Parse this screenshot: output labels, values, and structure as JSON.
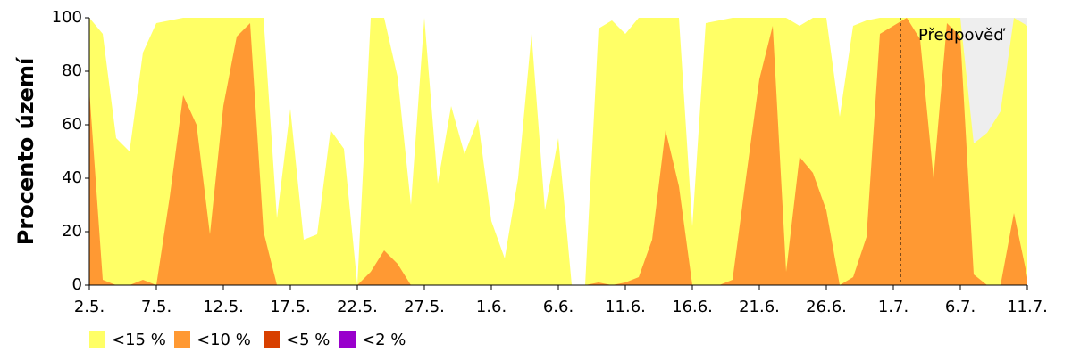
{
  "chart_data": {
    "type": "area",
    "y_label": "Procento území",
    "annotation": "Předpověď",
    "categories": [
      "2.5.",
      null,
      null,
      null,
      null,
      "7.5.",
      null,
      null,
      null,
      null,
      "12.5.",
      null,
      null,
      null,
      null,
      "17.5.",
      null,
      null,
      null,
      null,
      "22.5.",
      null,
      null,
      null,
      null,
      "27.5.",
      null,
      null,
      null,
      null,
      "1.6.",
      null,
      null,
      null,
      null,
      "6.6.",
      null,
      null,
      null,
      null,
      "11.6.",
      null,
      null,
      null,
      null,
      "16.6.",
      null,
      null,
      null,
      null,
      "21.6.",
      null,
      null,
      null,
      null,
      "26.6.",
      null,
      null,
      null,
      null,
      "1.7.",
      null,
      null,
      null,
      null,
      "6.7.",
      null,
      null,
      null,
      null,
      "11.7."
    ],
    "ylim": [
      0,
      100
    ],
    "yticks": [
      0,
      20,
      40,
      60,
      80,
      100
    ],
    "series": [
      {
        "name": "<15 %",
        "color": "#ffff66",
        "values": [
          100,
          94,
          55,
          50,
          87,
          98,
          99,
          100,
          100,
          100,
          100,
          100,
          100,
          100,
          25,
          66,
          17,
          19,
          58,
          51,
          0,
          100,
          100,
          78,
          30,
          100,
          38,
          67,
          49,
          62,
          24,
          10,
          40,
          94,
          28,
          55,
          0,
          0,
          96,
          99,
          94,
          100,
          100,
          100,
          100,
          22,
          98,
          99,
          100,
          100,
          100,
          100,
          100,
          97,
          100,
          100,
          63,
          97,
          99,
          100,
          100,
          100,
          100,
          100,
          100,
          100,
          53,
          57,
          65,
          100,
          97
        ]
      },
      {
        "name": "<10 %",
        "color": "#ff9933",
        "values": [
          73,
          2,
          0,
          0,
          2,
          0,
          33,
          71,
          60,
          19,
          67,
          93,
          98,
          20,
          0,
          0,
          0,
          0,
          0,
          0,
          0,
          5,
          13,
          8,
          0,
          0,
          0,
          0,
          0,
          0,
          0,
          0,
          0,
          0,
          0,
          0,
          0,
          0,
          1,
          0,
          1,
          3,
          17,
          58,
          37,
          0,
          0,
          0,
          2,
          40,
          77,
          97,
          5,
          48,
          42,
          28,
          0,
          3,
          18,
          94,
          97,
          100,
          92,
          40,
          98,
          93,
          4,
          0,
          0,
          27,
          3
        ]
      },
      {
        "name": "<5 %",
        "color": "#d84000",
        "values": [
          0,
          0,
          0,
          0,
          0,
          0,
          0,
          0,
          0,
          0,
          0,
          0,
          0,
          0,
          0,
          0,
          0,
          0,
          0,
          0,
          0,
          0,
          0,
          0,
          0,
          0,
          0,
          0,
          0,
          0,
          0,
          0,
          0,
          0,
          0,
          0,
          0,
          0,
          0,
          0,
          0,
          0,
          0,
          0,
          0,
          0,
          0,
          0,
          0,
          0,
          0,
          0,
          0,
          0,
          0,
          0,
          0,
          0,
          0,
          0,
          0,
          0,
          0,
          0,
          0,
          0,
          0,
          0,
          0,
          0,
          0
        ]
      },
      {
        "name": "<2 %",
        "color": "#9900cc",
        "values": [
          0,
          0,
          0,
          0,
          0,
          0,
          0,
          0,
          0,
          0,
          0,
          0,
          0,
          0,
          0,
          0,
          0,
          0,
          0,
          0,
          0,
          0,
          0,
          0,
          0,
          0,
          0,
          0,
          0,
          0,
          0,
          0,
          0,
          0,
          0,
          0,
          0,
          0,
          0,
          0,
          0,
          0,
          0,
          0,
          0,
          0,
          0,
          0,
          0,
          0,
          0,
          0,
          0,
          0,
          0,
          0,
          0,
          0,
          0,
          0,
          0,
          0,
          0,
          0,
          0,
          0,
          0,
          0,
          0,
          0,
          0
        ]
      }
    ]
  }
}
